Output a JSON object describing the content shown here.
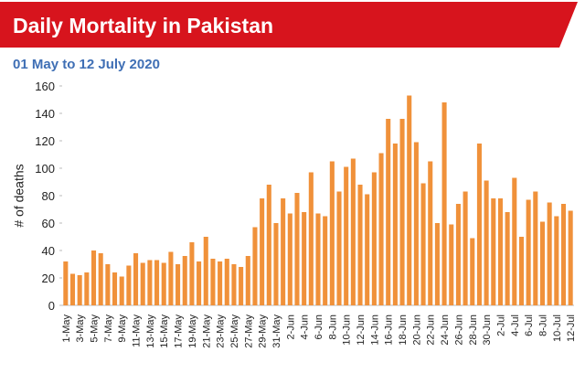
{
  "chart_data": {
    "type": "bar",
    "title": "Daily Mortality in Pakistan",
    "subtitle": "01 May to 12 July 2020",
    "y_label": "# of deaths",
    "color": "#f0913a",
    "categories": [
      "1-May",
      null,
      "3-May",
      null,
      "5-May",
      null,
      "7-May",
      null,
      "9-May",
      null,
      "11-May",
      null,
      "13-May",
      null,
      "15-May",
      null,
      "17-May",
      null,
      "19-May",
      null,
      "21-May",
      null,
      "23-May",
      null,
      "25-May",
      null,
      "27-May",
      null,
      "29-May",
      null,
      "31-May",
      null,
      "2-Jun",
      null,
      "4-Jun",
      null,
      "6-Jun",
      null,
      "8-Jun",
      null,
      "10-Jun",
      null,
      "12-Jun",
      null,
      "14-Jun",
      null,
      "16-Jun",
      null,
      "18-Jun",
      null,
      "20-Jun",
      null,
      "22-Jun",
      null,
      "24-Jun",
      null,
      "26-Jun",
      null,
      "28-Jun",
      null,
      "30-Jun",
      null,
      "2-Jul",
      null,
      "4-Jul",
      null,
      "6-Jul",
      null,
      "8-Jul",
      null,
      "10-Jul",
      null,
      "12-Jul"
    ],
    "values": [
      32,
      23,
      22,
      24,
      40,
      38,
      30,
      24,
      21,
      29,
      38,
      31,
      33,
      33,
      31,
      39,
      30,
      36,
      46,
      32,
      50,
      34,
      32,
      34,
      30,
      28,
      36,
      57,
      78,
      88,
      60,
      78,
      67,
      82,
      68,
      97,
      67,
      65,
      105,
      83,
      101,
      107,
      88,
      81,
      97,
      111,
      136,
      118,
      136,
      153,
      119,
      89,
      105,
      60,
      148,
      59,
      74,
      83,
      49,
      118,
      91,
      78,
      78,
      68,
      93,
      50,
      77,
      83,
      61,
      75,
      65,
      74,
      69
    ],
    "ylim": [
      0,
      160
    ],
    "yticks": [
      0,
      20,
      40,
      60,
      80,
      100,
      120,
      140,
      160
    ]
  }
}
